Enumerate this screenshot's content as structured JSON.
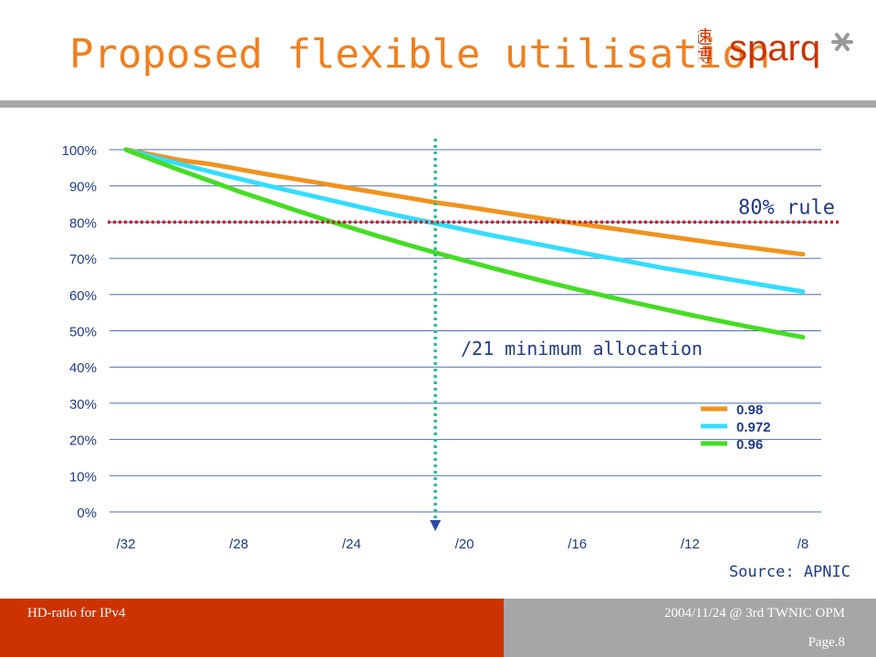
{
  "slide": {
    "title": "Proposed flexible utilisation",
    "logo": {
      "cjk": "速博",
      "brand": "sparq",
      "brand_color": "#cc3300"
    },
    "source": "Source: APNIC",
    "footer": {
      "left": "HD-ratio for IPv4",
      "right": "2004/11/24 @ 3rd TWNIC OPM",
      "page": "Page.8"
    }
  },
  "chart_data": {
    "type": "line",
    "x": [
      "/32",
      "/31",
      "/30",
      "/29",
      "/28",
      "/27",
      "/26",
      "/25",
      "/24",
      "/23",
      "/22",
      "/21",
      "/20",
      "/19",
      "/18",
      "/17",
      "/16",
      "/15",
      "/14",
      "/13",
      "/12",
      "/11",
      "/10",
      "/9",
      "/8"
    ],
    "x_tick_labels": [
      "/32",
      "/28",
      "/24",
      "/20",
      "/16",
      "/12",
      "/8"
    ],
    "y_ticks": [
      "0%",
      "10%",
      "20%",
      "30%",
      "40%",
      "50%",
      "60%",
      "70%",
      "80%",
      "90%",
      "100%"
    ],
    "ylim": [
      0,
      100
    ],
    "grid": true,
    "legend_position": "bottom-right",
    "series": [
      {
        "name": "0.98",
        "color": "#f0931e",
        "values": [
          100.0,
          98.5,
          97.0,
          96.0,
          94.6,
          93.2,
          91.9,
          90.6,
          89.3,
          88.0,
          86.7,
          85.4,
          84.3,
          83.1,
          81.9,
          80.7,
          79.6,
          78.5,
          77.4,
          76.3,
          75.2,
          74.1,
          73.1,
          72.1,
          71.1
        ]
      },
      {
        "name": "0.972",
        "color": "#33ddff",
        "values": [
          100.0,
          97.9,
          95.9,
          93.9,
          92.0,
          90.1,
          88.3,
          86.5,
          84.7,
          82.9,
          81.2,
          79.6,
          77.9,
          76.3,
          74.8,
          73.3,
          71.8,
          70.3,
          68.9,
          67.4,
          66.1,
          64.7,
          63.4,
          62.1,
          60.8
        ]
      },
      {
        "name": "0.96",
        "color": "#44dd22",
        "values": [
          100.0,
          97.0,
          94.1,
          91.3,
          88.5,
          85.9,
          83.3,
          80.8,
          78.4,
          76.0,
          73.7,
          71.5,
          69.4,
          67.3,
          65.3,
          63.3,
          61.4,
          59.6,
          57.8,
          56.1,
          54.4,
          52.8,
          51.2,
          49.7,
          48.2
        ]
      }
    ],
    "annotations": [
      {
        "type": "hline",
        "y": 80,
        "label": "80% rule",
        "color": "#c0262d"
      },
      {
        "type": "vline",
        "x": "/21",
        "label": "/21 minimum allocation",
        "color": "#1fbf8f"
      }
    ]
  }
}
